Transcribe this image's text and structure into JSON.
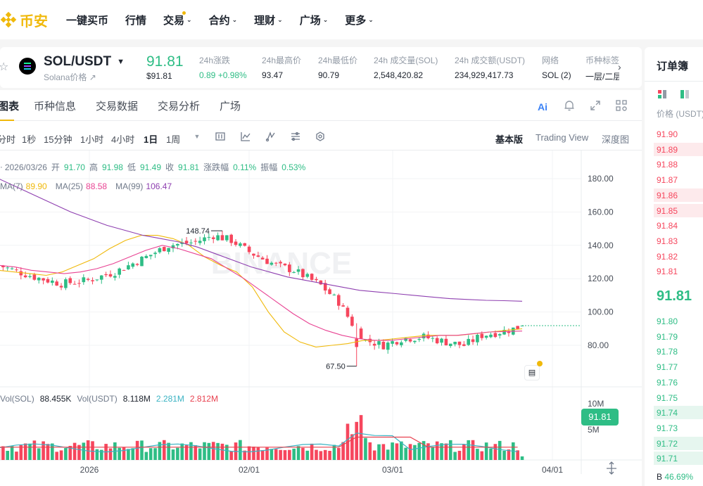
{
  "nav": {
    "brand": "币安",
    "items": [
      {
        "label": "一键买币",
        "chevron": false,
        "dot": false
      },
      {
        "label": "行情",
        "chevron": false,
        "dot": false
      },
      {
        "label": "交易",
        "chevron": true,
        "dot": true
      },
      {
        "label": "合约",
        "chevron": true,
        "dot": false
      },
      {
        "label": "理财",
        "chevron": true,
        "dot": false
      },
      {
        "label": "广场",
        "chevron": true,
        "dot": false
      },
      {
        "label": "更多",
        "chevron": true,
        "dot": false
      }
    ]
  },
  "ticker": {
    "pair": "SOL/USDT",
    "subtitle": "Solana价格",
    "last_price": "91.81",
    "last_price_usd": "$91.81",
    "stats": [
      {
        "label": "24h涨跌",
        "value": "0.89 +0.98%",
        "color": "#2ebd85"
      },
      {
        "label": "24h最高价",
        "value": "93.47"
      },
      {
        "label": "24h最低价",
        "value": "90.79"
      },
      {
        "label": "24h 成交量(SOL)",
        "value": "2,548,420.82"
      },
      {
        "label": "24h 成交额(USDT)",
        "value": "234,929,417.73"
      },
      {
        "label": "网络",
        "value": "SOL (2)"
      },
      {
        "label": "币种标签",
        "value": "一层/二层"
      }
    ]
  },
  "tabs": [
    "图表",
    "币种信息",
    "交易数据",
    "交易分析",
    "广场"
  ],
  "toolbar": {
    "intervals": [
      "分时",
      "1秒",
      "15分钟",
      "1小时",
      "4小时",
      "1日",
      "1周"
    ],
    "active_interval": "1日",
    "views": [
      "基本版",
      "Trading View",
      "深度图"
    ],
    "active_view": "基本版"
  },
  "ohlc": {
    "date": "2026/03/26",
    "open_label": "开",
    "open": "91.70",
    "high_label": "高",
    "high": "91.98",
    "low_label": "低",
    "low": "91.49",
    "close_label": "收",
    "close": "91.81",
    "chg_label": "涨跌幅",
    "chg": "0.11%",
    "amp_label": "振幅",
    "amp": "0.53%"
  },
  "ma": [
    {
      "label": "MA(7)",
      "value": "89.90",
      "color": "#F0B90B"
    },
    {
      "label": "MA(25)",
      "value": "88.58",
      "color": "#e84393"
    },
    {
      "label": "MA(99)",
      "value": "106.47",
      "color": "#8e3fb0"
    }
  ],
  "volume": {
    "vol_sol_label": "Vol(SOL)",
    "vol_sol": "88.455K",
    "vol_usdt_label": "Vol(USDT)",
    "vol_usdt": "8.118M",
    "ma1": "2.281M",
    "ma2": "2.812M"
  },
  "chart_data": {
    "type": "candlestick",
    "y_axis_ticks": [
      "180.00",
      "160.00",
      "140.00",
      "120.00",
      "100.00",
      "80.00"
    ],
    "ylim": [
      62,
      185
    ],
    "volume_ticks": [
      "10M",
      "5M"
    ],
    "x_ticks": [
      "2026",
      "02/01",
      "03/01",
      "04/01"
    ],
    "current_price": "91.81",
    "high_marker": "148.74",
    "low_marker": "67.50",
    "ma_series": [
      {
        "name": "MA(7)",
        "values": [
          125,
          124,
          123,
          122,
          124,
          128,
          132,
          138,
          143,
          146,
          146,
          144,
          140,
          133,
          128,
          124,
          115,
          100,
          88,
          82,
          79,
          80,
          81,
          83,
          83,
          84,
          85,
          86,
          86,
          86,
          87,
          88,
          89,
          89.9
        ]
      },
      {
        "name": "MA(25)",
        "values": [
          128,
          127,
          125,
          124,
          123,
          124,
          126,
          129,
          133,
          137,
          140,
          138,
          135,
          132,
          126,
          120,
          113,
          106,
          99,
          93,
          89,
          86,
          84,
          83,
          83,
          84,
          85,
          86,
          86,
          87,
          88,
          88.3,
          88.58
        ]
      },
      {
        "name": "MA(99)",
        "values": [
          180,
          175,
          170,
          165,
          160,
          156,
          152,
          149,
          146,
          144,
          142,
          139,
          135,
          131,
          127,
          124,
          121,
          119,
          117,
          115,
          113,
          112,
          111,
          110,
          109,
          108,
          107.5,
          107,
          106.8,
          106.47
        ]
      }
    ]
  },
  "orderbook": {
    "title": "订单簿",
    "price_header": "价格 (USDT)",
    "asks": [
      "91.90",
      "91.89",
      "91.88",
      "91.87",
      "91.86",
      "91.85",
      "91.84",
      "91.83",
      "91.82",
      "91.81"
    ],
    "mid_price": "91.81",
    "bids": [
      "91.80",
      "91.79",
      "91.78",
      "91.77",
      "91.76",
      "91.75",
      "91.74",
      "91.73",
      "91.72",
      "91.71"
    ],
    "ratio_label": "B",
    "ratio": "46.69%",
    "ask_color": "#f6465d",
    "bid_color": "#2ebd85"
  },
  "watermark": "BINANCE"
}
